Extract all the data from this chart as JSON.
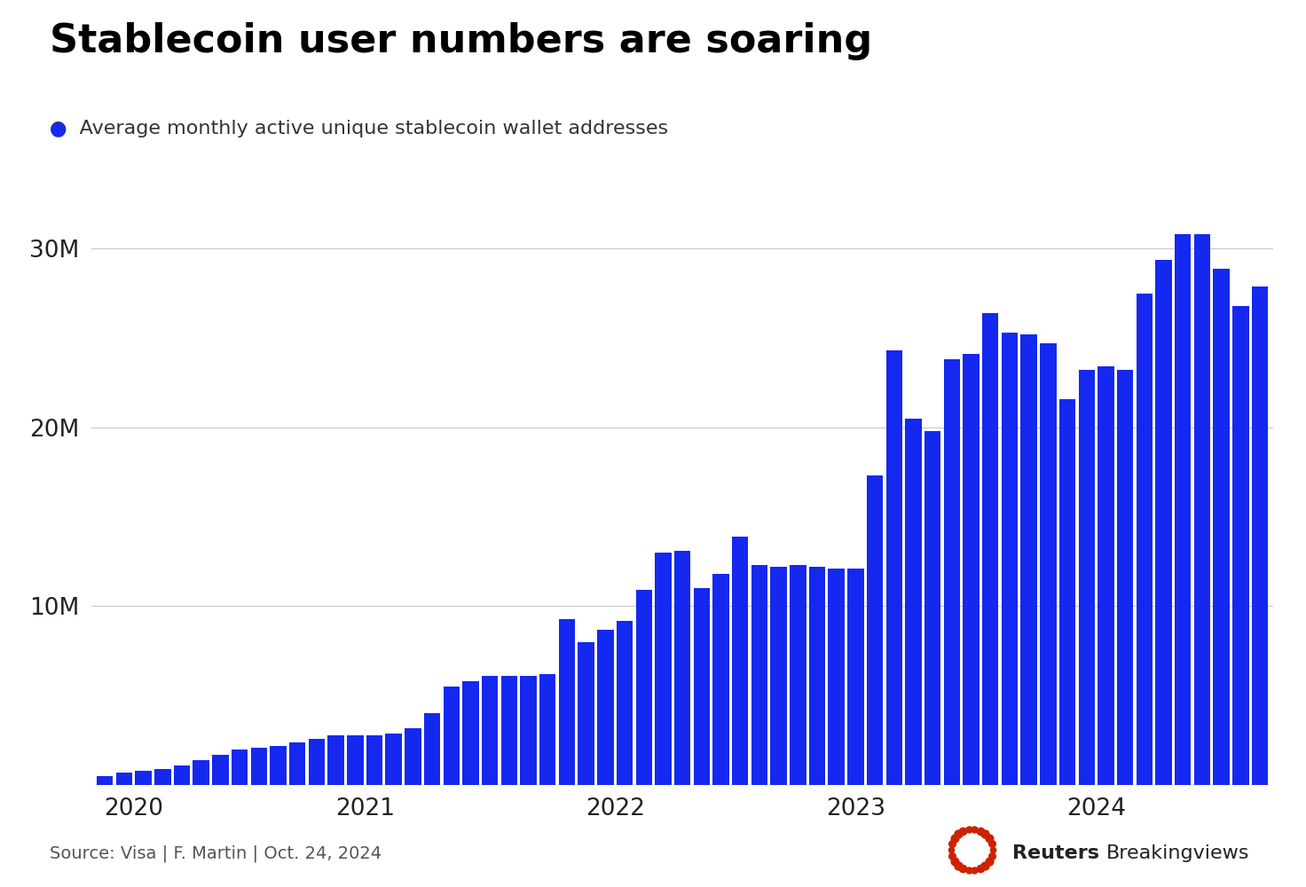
{
  "title": "Stablecoin user numbers are soaring",
  "legend_label": "Average monthly active unique stablecoin wallet addresses",
  "source": "Source: Visa | F. Martin | Oct. 24, 2024",
  "bar_color": "#1528f0",
  "background_color": "#ffffff",
  "ylim": [
    0,
    33000000
  ],
  "yticks": [
    0,
    10000000,
    20000000,
    30000000
  ],
  "ytick_labels": [
    "",
    "10M",
    "20M",
    "30M"
  ],
  "values": [
    500000,
    700000,
    800000,
    900000,
    1100000,
    1400000,
    1700000,
    2000000,
    2100000,
    2200000,
    2400000,
    2600000,
    2800000,
    2800000,
    2800000,
    2900000,
    3200000,
    4000000,
    5500000,
    5800000,
    6100000,
    6100000,
    6100000,
    6200000,
    9300000,
    8000000,
    8700000,
    9200000,
    10900000,
    13000000,
    13100000,
    11000000,
    11800000,
    13900000,
    12300000,
    12200000,
    12300000,
    12200000,
    12100000,
    12100000,
    17300000,
    24300000,
    20500000,
    19800000,
    23800000,
    24100000,
    26400000,
    25300000,
    25200000,
    24700000,
    21600000,
    23200000,
    23400000,
    23200000,
    27500000,
    29400000,
    30800000,
    30800000,
    28900000,
    26800000,
    27900000
  ],
  "year_tick_positions": [
    1.5,
    13.5,
    26.5,
    39.0,
    51.5
  ],
  "year_labels": [
    "2020",
    "2021",
    "2022",
    "2023",
    "2024"
  ],
  "title_fontsize": 32,
  "legend_fontsize": 16,
  "tick_fontsize": 19,
  "source_fontsize": 14,
  "reuters_fontsize": 16
}
